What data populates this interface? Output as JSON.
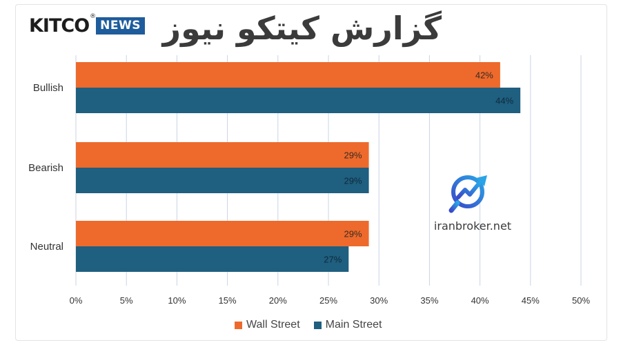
{
  "header": {
    "logo_main": "KITCO",
    "logo_mark": "®",
    "logo_badge": "NEWS",
    "title_fa": "گزارش کیتکو نیوز"
  },
  "watermark": {
    "text": "iranbroker.net",
    "icon": "chart-magnifier-icon"
  },
  "colors": {
    "wall_street": "#ED6A2C",
    "main_street": "#1F5F80",
    "grid": "#c9d4e3",
    "text": "#333333"
  },
  "chart_data": {
    "type": "bar",
    "orientation": "horizontal",
    "categories": [
      "Bullish",
      "Bearish",
      "Neutral"
    ],
    "series": [
      {
        "name": "Wall Street",
        "values": [
          42,
          29,
          29
        ],
        "labels": [
          "42%",
          "29%",
          "29%"
        ]
      },
      {
        "name": "Main Street",
        "values": [
          44,
          29,
          27
        ],
        "labels": [
          "44%",
          "29%",
          "27%"
        ]
      }
    ],
    "xlim": [
      0,
      50
    ],
    "xticks": [
      "0%",
      "5%",
      "10%",
      "15%",
      "20%",
      "25%",
      "30%",
      "35%",
      "40%",
      "45%",
      "50%"
    ],
    "grid": true,
    "legend_position": "bottom"
  }
}
